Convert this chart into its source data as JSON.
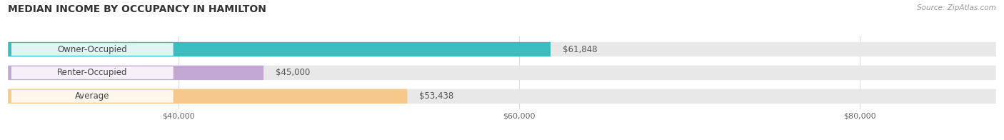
{
  "title": "MEDIAN INCOME BY OCCUPANCY IN HAMILTON",
  "source": "Source: ZipAtlas.com",
  "categories": [
    "Owner-Occupied",
    "Renter-Occupied",
    "Average"
  ],
  "values": [
    61848,
    45000,
    53438
  ],
  "bar_colors": [
    "#3bbcbe",
    "#c4a8d4",
    "#f5c98c"
  ],
  "bar_bg_color": "#e8e8e8",
  "value_labels": [
    "$61,848",
    "$45,000",
    "$53,438"
  ],
  "xlim": [
    30000,
    88000
  ],
  "xticks": [
    40000,
    60000,
    80000
  ],
  "xtick_labels": [
    "$40,000",
    "$60,000",
    "$80,000"
  ],
  "title_fontsize": 10,
  "label_fontsize": 8.5,
  "tick_fontsize": 8,
  "source_fontsize": 7.5,
  "bar_height": 0.62,
  "figsize": [
    14.06,
    1.96
  ],
  "dpi": 100,
  "bg_color": "#ffffff"
}
